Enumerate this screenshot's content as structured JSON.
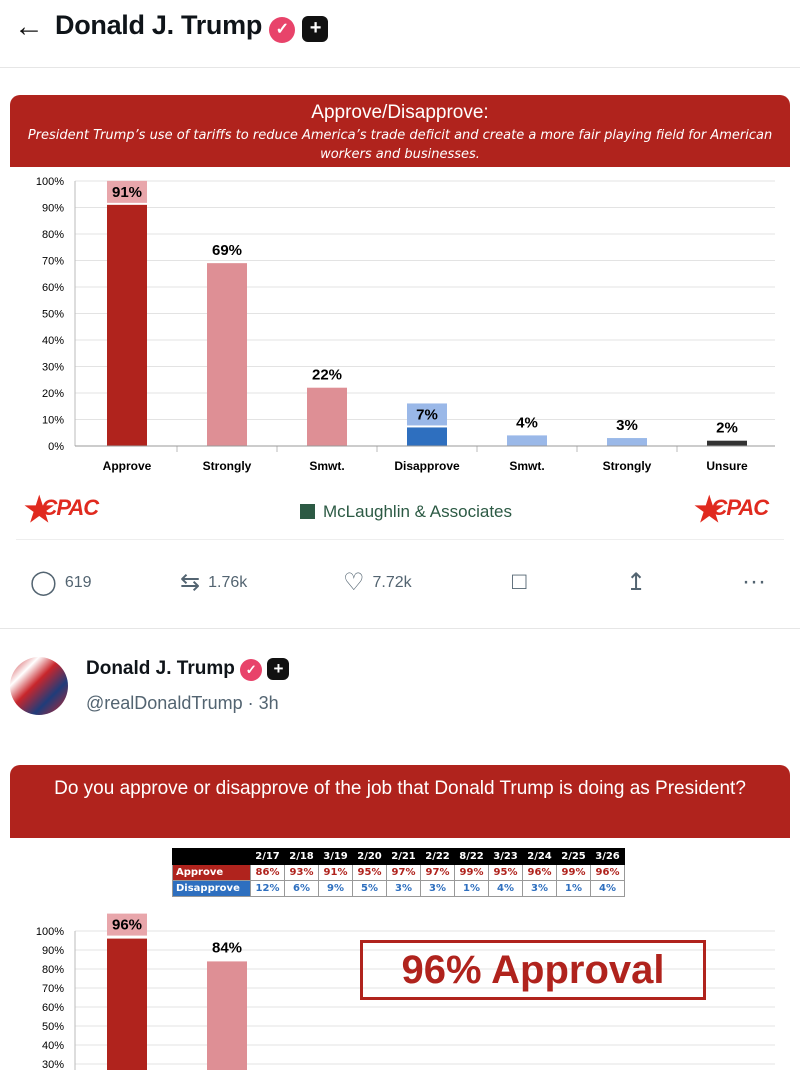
{
  "header": {
    "back_icon": "arrow-left-icon",
    "title": "Donald J. Trump",
    "verified_icon": "verified-badge-icon",
    "plus_icon": "plus-badge-icon"
  },
  "post1": {
    "image": {
      "banner_title": "Approve/Disapprove:",
      "banner_subtitle": "President Trump’s use of tariffs to reduce America’s trade deficit and create a more fair playing field for American workers and businesses.",
      "logo_left": "CPAC",
      "logo_center": "McLaughlin & Associates",
      "logo_right": "CPAC"
    },
    "actions": {
      "replies": "619",
      "reposts": "1.76k",
      "likes": "7.72k"
    }
  },
  "post2": {
    "author": "Donald J. Trump",
    "handle": "@realDonaldTrump · 3h",
    "image": {
      "banner_title": "Do you approve or disapprove of the job that Donald Trump is doing as President?",
      "table": {
        "dates": [
          "2/17",
          "2/18",
          "3/19",
          "2/20",
          "2/21",
          "2/22",
          "8/22",
          "3/23",
          "2/24",
          "2/25",
          "3/26"
        ],
        "rows": [
          {
            "label": "Approve",
            "color": "#b0231d",
            "values": [
              "86%",
              "93%",
              "91%",
              "95%",
              "97%",
              "97%",
              "99%",
              "95%",
              "96%",
              "99%",
              "96%"
            ]
          },
          {
            "label": "Disapprove",
            "color": "#2e6fbf",
            "values": [
              "12%",
              "6%",
              "9%",
              "5%",
              "3%",
              "3%",
              "1%",
              "4%",
              "3%",
              "1%",
              "4%"
            ]
          }
        ]
      },
      "callout": "96% Approval"
    }
  },
  "chart_data": [
    {
      "type": "bar",
      "title": "Approve/Disapprove:",
      "categories": [
        "Approve",
        "Strongly",
        "Smwt.",
        "Disapprove",
        "Smwt.",
        "Strongly",
        "Unsure"
      ],
      "values": [
        91,
        69,
        22,
        7,
        4,
        3,
        2
      ],
      "labels": [
        "91%",
        "69%",
        "22%",
        "7%",
        "4%",
        "3%",
        "2%"
      ],
      "colors": [
        "#b0231d",
        "#de8f95",
        "#de8f95",
        "#2e6fbf",
        "#9ab8e8",
        "#9ab8e8",
        "#333333"
      ],
      "ylim": [
        0,
        100
      ],
      "yticks": [
        "0%",
        "10%",
        "20%",
        "30%",
        "40%",
        "50%",
        "60%",
        "70%",
        "80%",
        "90%",
        "100%"
      ],
      "grid": true
    },
    {
      "type": "bar",
      "title": "Do you approve or disapprove of the job that Donald Trump is doing as President?",
      "values": [
        96,
        84
      ],
      "labels": [
        "96%",
        "84%"
      ],
      "colors": [
        "#b0231d",
        "#de8f95"
      ],
      "ylim": [
        0,
        100
      ],
      "yticks": [
        "30%",
        "40%",
        "50%",
        "60%",
        "70%",
        "80%",
        "90%",
        "100%"
      ],
      "grid": true
    }
  ]
}
